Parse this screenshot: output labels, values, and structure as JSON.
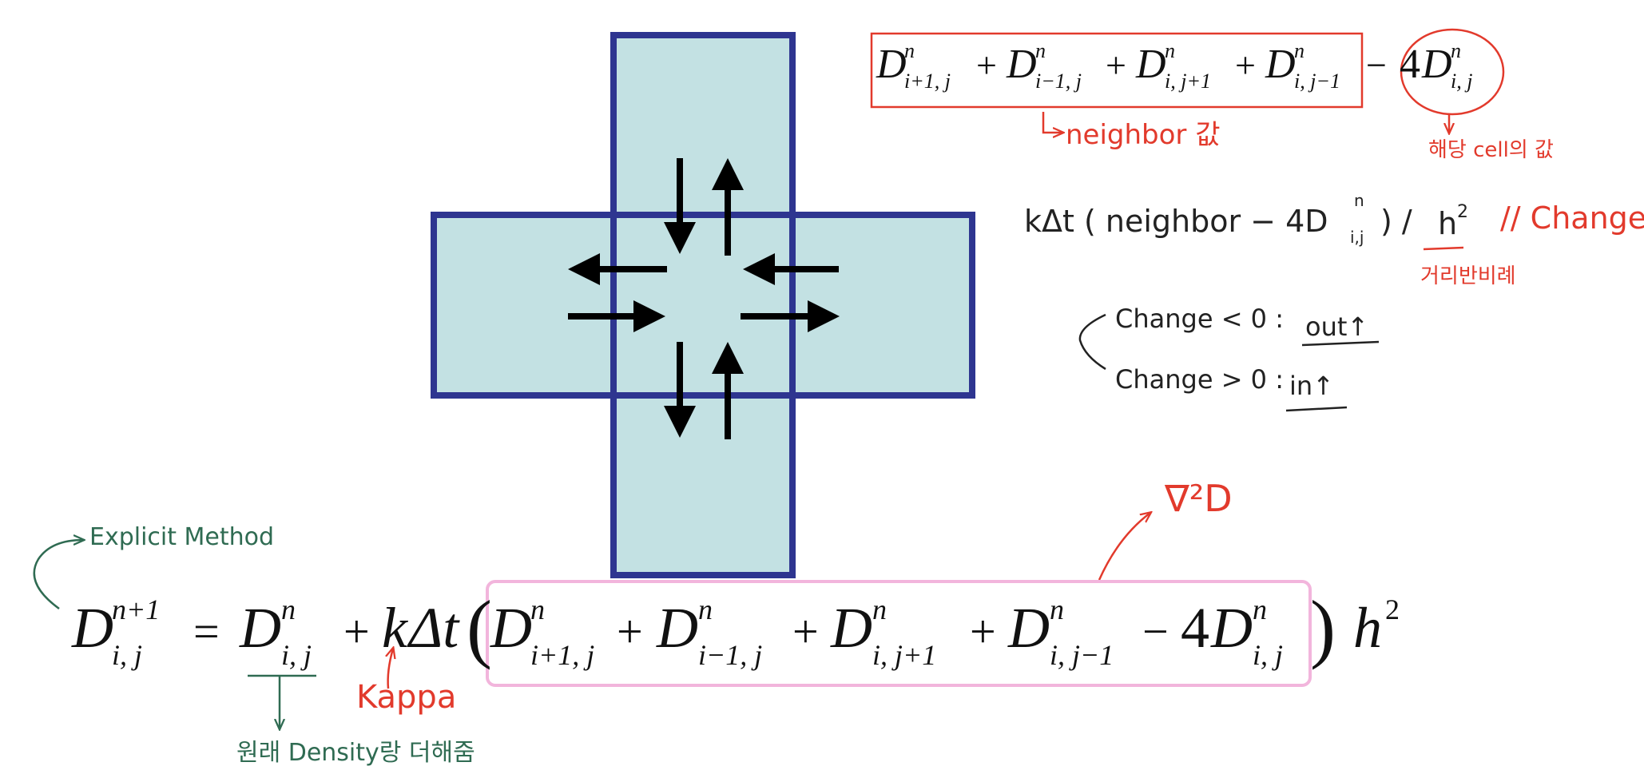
{
  "colors": {
    "cell_fill": "#c3e1e3",
    "cell_stroke": "#2e3590",
    "arrow": "#000000",
    "red_ink": "#e23a2c",
    "green_ink": "#2f6b52",
    "pink_ink": "#f2b5dc",
    "black_ink": "#222222"
  },
  "top_formula": {
    "sup": "n",
    "terms": [
      {
        "base": "D",
        "sub": "i+1, j"
      },
      {
        "base": "D",
        "sub": "i−1, j"
      },
      {
        "base": "D",
        "sub": "i, j+1"
      },
      {
        "base": "D",
        "sub": "i, j−1"
      }
    ],
    "plus": "+",
    "minus": "−",
    "coef": "4",
    "center": {
      "base": "D",
      "sub": "i, j"
    }
  },
  "notes": {
    "neighbor_label": "neighbor 값",
    "cell_label": "해당 cell의 값",
    "change_eq_prefix": "kΔt ( neighbor − 4D",
    "change_eq_sub": "i,j",
    "change_eq_sup": "n",
    "change_eq_close": ") /",
    "change_eq_h": "h",
    "change_eq_h_exp": "2",
    "change_eq_comment": "// Change",
    "inverse_label": "거리반비례",
    "rule_negative": "Change < 0 :",
    "rule_negative_result": "out↑",
    "rule_positive": "Change > 0 :",
    "rule_positive_result": "in↑",
    "nabla_label": "∇²D",
    "explicit_label": "Explicit Method",
    "kappa_label": "Kappa",
    "density_label": "원래 Density랑 더해줌"
  },
  "main_formula": {
    "lhs_base": "D",
    "lhs_sup": "n+1",
    "lhs_sub": "i, j",
    "equals": "=",
    "d_base": "D",
    "d_sup": "n",
    "d_sub": "i, j",
    "plus": "+",
    "k": "k",
    "delta_t": "Δt",
    "paren_open": "(",
    "paren_close": ")",
    "terms": [
      {
        "base": "D",
        "sub": "i+1, j"
      },
      {
        "base": "D",
        "sub": "i−1, j"
      },
      {
        "base": "D",
        "sub": "i, j+1"
      },
      {
        "base": "D",
        "sub": "i, j−1"
      }
    ],
    "term_sup": "n",
    "minus": "−",
    "coef": "4",
    "center": {
      "base": "D",
      "sub": "i, j"
    },
    "h": "h",
    "h_exp": "2"
  }
}
